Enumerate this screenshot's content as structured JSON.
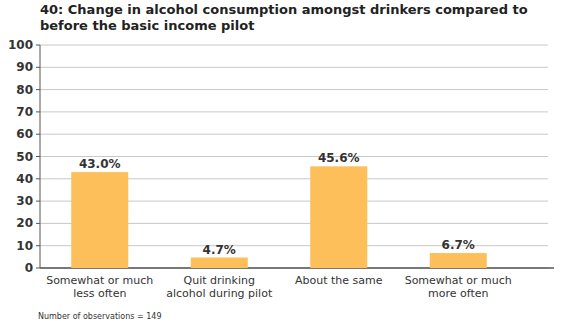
{
  "chart_data": {
    "type": "bar",
    "title": "40: Change in alcohol consumption amongst drinkers compared to before the basic income pilot",
    "categories": [
      "Somewhat or much less often",
      "Quit drinking alcohol during pilot",
      "About the same",
      "Somewhat or much more often"
    ],
    "values": [
      43.0,
      4.7,
      45.6,
      6.7
    ],
    "value_labels": [
      "43.0%",
      "4.7%",
      "45.6%",
      "6.7%"
    ],
    "data_labels": true,
    "color": "#fdbf5a",
    "ylim": [
      0,
      100
    ],
    "yticks": [
      0,
      10,
      20,
      30,
      40,
      50,
      60,
      70,
      80,
      90,
      100
    ],
    "grid": true,
    "annotations": [
      "Number of observations = 149"
    ]
  }
}
